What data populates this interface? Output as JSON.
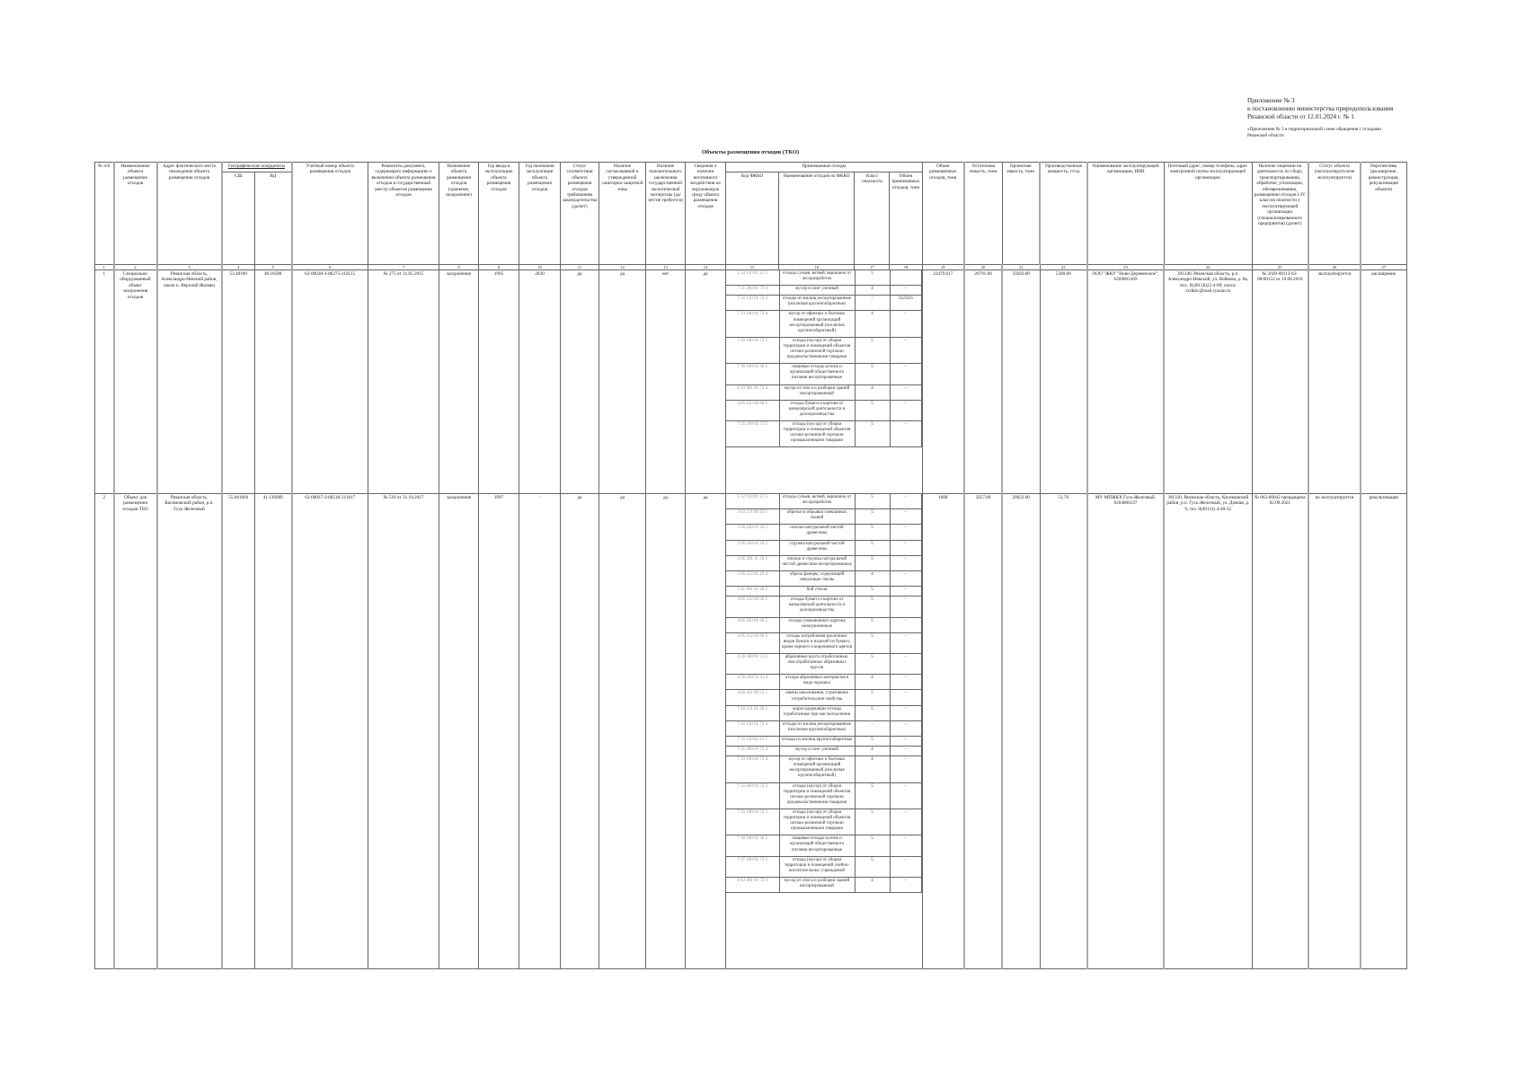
{
  "appendix": {
    "line1": "Приложение № 3",
    "line2": "к постановлению министерства природопользования",
    "line3": "Рязанской области от 12.01.2024 г. № 1",
    "note": "«Приложение № 3 к территориальной схеме обращения с отходами Рязанской области"
  },
  "title": "Объекты размещения отходов (ТКО)",
  "headers": {
    "c1": "№ п/п",
    "c2": "Наименование объекта размещения отходов",
    "c3": "Адрес фактического места нахождения объекта размещения отходов",
    "coords": "Географические координаты",
    "c4": "СШ",
    "c5": "ВД",
    "c6": "Учетный номер объекта размещения отходов",
    "c7": "Реквизиты документа, содержащего информацию о включении объекта размещения отходов в государственный реестр объектов размещения отходов",
    "c8": "Назначение объекта размещения отходов (хранение, захоронение)",
    "c9": "Год ввода в эксплуатацию объекта размещения отходов",
    "c10": "Год окончания эксплуатации объекта размещения отходов",
    "c11": "Статус соответствия объекта размещения отходов требованиям законодательства (да/нет)",
    "c12": "Наличие согласованной и утвержденной санитарно-защитной зоны",
    "c13": "Наличие положительного заключения государственной экологической экспертизы (да/нет/не требуется)",
    "c14": "Сведения о наличии негативного воздействия на окружающую среду объекта размещения отходов",
    "accepted": "Принимаемые отходы",
    "c15": "Код ФККО",
    "c16": "Наименование отходов по ФККО",
    "c17": "Класс опасности",
    "c18": "Объем принимаемых отходов, тонн",
    "c19": "Объем размещенных отходов, тонн",
    "c20": "Остаточная емкость, тонн",
    "c21": "Проектная емкость, тонн",
    "c22": "Производственная мощность, т/год",
    "c23": "Наименование эксплуатирующей организации, ИНН",
    "c24": "Почтовый адрес, номер телефона, адрес электронной почты эксплуатирующей организации",
    "c25": "Наличие лицензии на деятельность по сбору, транспортированию, обработке, утилизации, обезвреживанию, размещению отходов I-IV классов опасности у эксплуатирующей организации (специализированного предприятия) (да/нет)",
    "c26": "Статус объекта (эксплуатируется/не эксплуатируется)",
    "c27": "Перспективы (расширение, реконструкция, рекультивация объекта)"
  },
  "column_numbers": [
    "1",
    "2",
    "3",
    "4",
    "5",
    "6",
    "7",
    "8",
    "9",
    "10",
    "11",
    "12",
    "13",
    "14",
    "15",
    "16",
    "17",
    "18",
    "19",
    "20",
    "21",
    "22",
    "23",
    "24",
    "25",
    "26",
    "27"
  ],
  "rows": [
    {
      "num": "1",
      "name": "Специально оборудованный объект захоронения отходов",
      "address": "Рязанская область, Александро-Невский район, около п. Верхний Якимец",
      "lat": "53.48189",
      "lon": "40.18588",
      "reg_number": "62-00028-З-00275-310515",
      "doc": "№ 275 от 31.05.2015",
      "purpose": "захоронение",
      "year_start": "1995",
      "year_end": "2030",
      "compliance": "да",
      "szz": "да",
      "expertise": "нет",
      "impact": "да",
      "wastes": [
        {
          "code": "1 52 110 01 21 5",
          "name": "отходы сучьев, ветвей, вершинок от лесоразработок",
          "class": "5",
          "volume": ""
        },
        {
          "code": "7 31 200 01 72 4",
          "name": "мусор и смет уличный",
          "class": "4",
          "volume": "-"
        },
        {
          "code": "7 31 110 01 72 4",
          "name": "отходы из жилищ несортированные (исключая крупногабаритные)",
          "class": "-",
          "volume": "32258.6"
        },
        {
          "code": "7 33 100 01 72 4",
          "name": "мусор от офисных и бытовых помещений организаций несортированный (исключая крупногабаритный)",
          "class": "4",
          "volume": "-"
        },
        {
          "code": "7 35 100 01 72 5",
          "name": "отходы (мусор) от уборки территории и помещений объектов оптово-розничной торговли продовольственными товарами",
          "class": "5",
          "volume": "-"
        },
        {
          "code": "7 36 100 01 30 5",
          "name": "пищевые отходы кухонь и организаций общественного питания несортированные",
          "class": "5",
          "volume": "-"
        },
        {
          "code": "8 12 901 01 72 4",
          "name": "мусор от сноса и разборки зданий несортированный",
          "class": "4",
          "volume": "-"
        },
        {
          "code": "4 05 122 02 60 5",
          "name": "отходы бумаги и картона от канцелярской деятельности и делопроизводства",
          "class": "5",
          "volume": "-"
        },
        {
          "code": "7 35 100 02 72 5",
          "name": "отходы (мусор) от уборки территории и помещений объектов оптово-розничной торговли промышленными товарами",
          "class": "5",
          "volume": "-"
        }
      ],
      "placed": "22479.617",
      "residual": "20791.00",
      "design": "50203.00",
      "capacity": "5300.00",
      "operator": "ООО \"ЖКУ \"Ново-Деревенское\", 6209001269",
      "contacts": "391240, Рязанская область, р.п. Александро-Невский, ул. Войкова, д. 8а, тел.: 8(49158)22-4-89, почта: zvdkkv@mail.ryazan.ru",
      "license": "№ 2020-00113-62-00/00152 от 19.08.2018",
      "status": "эксплуатируется",
      "prospects": "расширение"
    },
    {
      "num": "2",
      "name": "Объект для размещения отходов ТБО",
      "address": "Рязанская область, Касимовский район, р.п. Гусь-Железный",
      "lat": "55.041004",
      "lon": "41.136909",
      "reg_number": "62-00037-З-00518-311017",
      "doc": "№ 518 от 31.10.2017",
      "purpose": "захоронение",
      "year_start": "1997",
      "year_end": "-",
      "compliance": "да",
      "szz": "да",
      "expertise": "да",
      "impact": "да",
      "wastes": [
        {
          "code": "1 52 110 01 21 5",
          "name": "отходы сучьев, ветвей, вершинок от лесоразработок",
          "class": "5",
          "volume": "-"
        },
        {
          "code": "3 03 111 09 23 5",
          "name": "обрезки и обрывки смешанных тканей",
          "class": "5",
          "volume": "-"
        },
        {
          "code": "3 05 230 01 43 5",
          "name": "опилки натуральной чистой древесины",
          "class": "5",
          "volume": "-"
        },
        {
          "code": "3 05 230 02 22 5",
          "name": "стружка натуральной чистой древесины",
          "class": "5",
          "volume": "-"
        },
        {
          "code": "3 05 291 11 20 5",
          "name": "опилки и стружка натуральной чистой древесины несортированные",
          "class": "5",
          "volume": "-"
        },
        {
          "code": "3 05 312 01 29 4",
          "name": "обрезь фанеры, содержащей связующие смолы",
          "class": "4",
          "volume": "-"
        },
        {
          "code": "3 41 901 01 20 5",
          "name": "бой стекла",
          "class": "5",
          "volume": "-"
        },
        {
          "code": "4 05 122 02 60 5",
          "name": "отходы бумаги и картона от канцелярской деятельности и делопроизводства",
          "class": "5",
          "volume": "-"
        },
        {
          "code": "4 05 183 01 60 5",
          "name": "отходы упаковочного картона незагрязненные",
          "class": "5",
          "volume": "-"
        },
        {
          "code": "4 05 912 02 60 5",
          "name": "отходы потребления различных видов бумаги и изделий из бумаги, кроме черного и коричневого цветов",
          "class": "5",
          "volume": "-"
        },
        {
          "code": "4 56 100 01 51 5",
          "name": "абразивные круги отработанные, лом отработанных абразивных кругов",
          "class": "5",
          "volume": "-"
        },
        {
          "code": "4 56 200 52 41 4",
          "name": "отходы абразивных материалов в виде порошка",
          "class": "4",
          "volume": "-"
        },
        {
          "code": "4 82 411 00 52 5",
          "name": "лампы накаливания, утратившие потребительские свойства",
          "class": "5",
          "volume": "-"
        },
        {
          "code": "7 10 211 01 20 5",
          "name": "жиросодержащие отходы отработанные при маслоотделении",
          "class": "5",
          "volume": "-"
        },
        {
          "code": "7 31 110 01 72 4",
          "name": "отходы из жилищ несортированные (исключая крупногабаритные)",
          "class": "-",
          "volume": "-"
        },
        {
          "code": "7 31 110 02 21 5",
          "name": "отходы из жилищ крупногабаритные",
          "class": "5",
          "volume": "-"
        },
        {
          "code": "7 31 200 01 72 4",
          "name": "мусор и смет уличный",
          "class": "4",
          "volume": "-"
        },
        {
          "code": "7 33 100 01 72 4",
          "name": "мусор от офисных и бытовых помещений организаций несортированный (исключая крупногабаритный)",
          "class": "4",
          "volume": "-"
        },
        {
          "code": "7 35 100 01 72 5",
          "name": "отходы (мусор) от уборки территории и помещений объектов оптово-розничной торговли продовольственными товарами",
          "class": "5",
          "volume": "-"
        },
        {
          "code": "7 35 100 02 72 5",
          "name": "отходы (мусор) от уборки территории и помещений объектов оптово-розничной торговли промышленными товарами",
          "class": "5",
          "volume": "-"
        },
        {
          "code": "7 36 100 01 30 5",
          "name": "пищевые отходы кухонь и организаций общественного питания несортированные",
          "class": "5",
          "volume": "-"
        },
        {
          "code": "7 37 100 01 72 5",
          "name": "отходы (мусор) от уборки территории и помещений учебно-воспитательных учреждений",
          "class": "5",
          "volume": "-"
        },
        {
          "code": "8 12 901 01 72 4",
          "name": "мусор от сноса и разборки зданий несортированный",
          "class": "4",
          "volume": "-"
        }
      ],
      "placed": "1088",
      "residual": "3257.00",
      "design": "20023.00",
      "capacity": "51.70",
      "operator": "МУ МПЖКХ Гусь-Железный, 6204000137",
      "contacts": "391320, Рязанская область, Касимовский район, р.п. Гусь-Железный, ул. Дачная, д. 9, тел. 8(49131) 4-40-32",
      "license": "№ 062-00042 прекращена 02.09.2021",
      "status": "не эксплуатируется",
      "prospects": "рекультивация"
    }
  ]
}
